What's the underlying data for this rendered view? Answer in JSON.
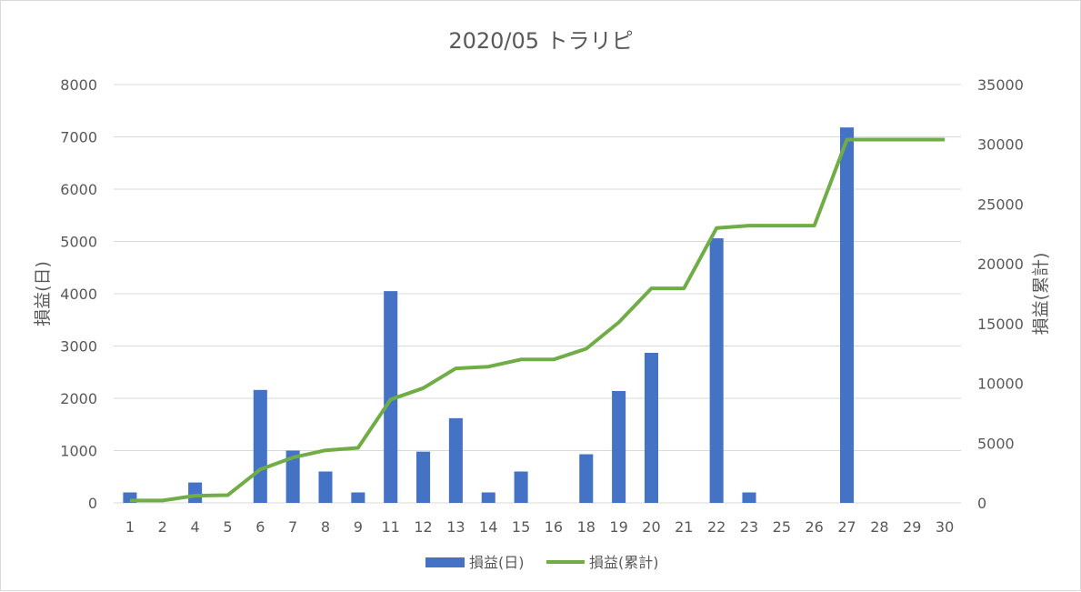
{
  "chart_data": {
    "type": "bar",
    "title": "2020/05 トラリピ",
    "categories": [
      "1",
      "2",
      "4",
      "5",
      "6",
      "7",
      "8",
      "9",
      "11",
      "12",
      "13",
      "14",
      "15",
      "16",
      "18",
      "19",
      "20",
      "21",
      "22",
      "23",
      "25",
      "26",
      "27",
      "28",
      "29",
      "30"
    ],
    "series": [
      {
        "name": "損益(日)",
        "type": "bar",
        "axis": "left",
        "color": "#4472C4",
        "values": [
          200,
          0,
          390,
          0,
          2160,
          1000,
          600,
          200,
          4050,
          980,
          1620,
          200,
          600,
          0,
          930,
          2140,
          2870,
          0,
          5060,
          200,
          0,
          0,
          7180,
          0,
          0,
          0
        ]
      },
      {
        "name": "損益(累計)",
        "type": "line",
        "axis": "right",
        "color": "#70AD47",
        "values": [
          200,
          200,
          600,
          650,
          2800,
          3800,
          4400,
          4600,
          8650,
          9600,
          11250,
          11400,
          12000,
          12000,
          12900,
          15100,
          17950,
          17950,
          23000,
          23200,
          23200,
          23200,
          30400,
          30400,
          30400,
          30400
        ]
      }
    ],
    "ylabel": "損益(日)",
    "y2label": "損益(累計)",
    "ylim": [
      0,
      8000
    ],
    "y2lim": [
      0,
      35000
    ],
    "yticks": [
      "0",
      "1000",
      "2000",
      "3000",
      "4000",
      "5000",
      "6000",
      "7000",
      "8000"
    ],
    "y2ticks": [
      "0",
      "5000",
      "10000",
      "15000",
      "20000",
      "25000",
      "30000",
      "35000"
    ],
    "grid": true,
    "legend_position": "bottom"
  }
}
